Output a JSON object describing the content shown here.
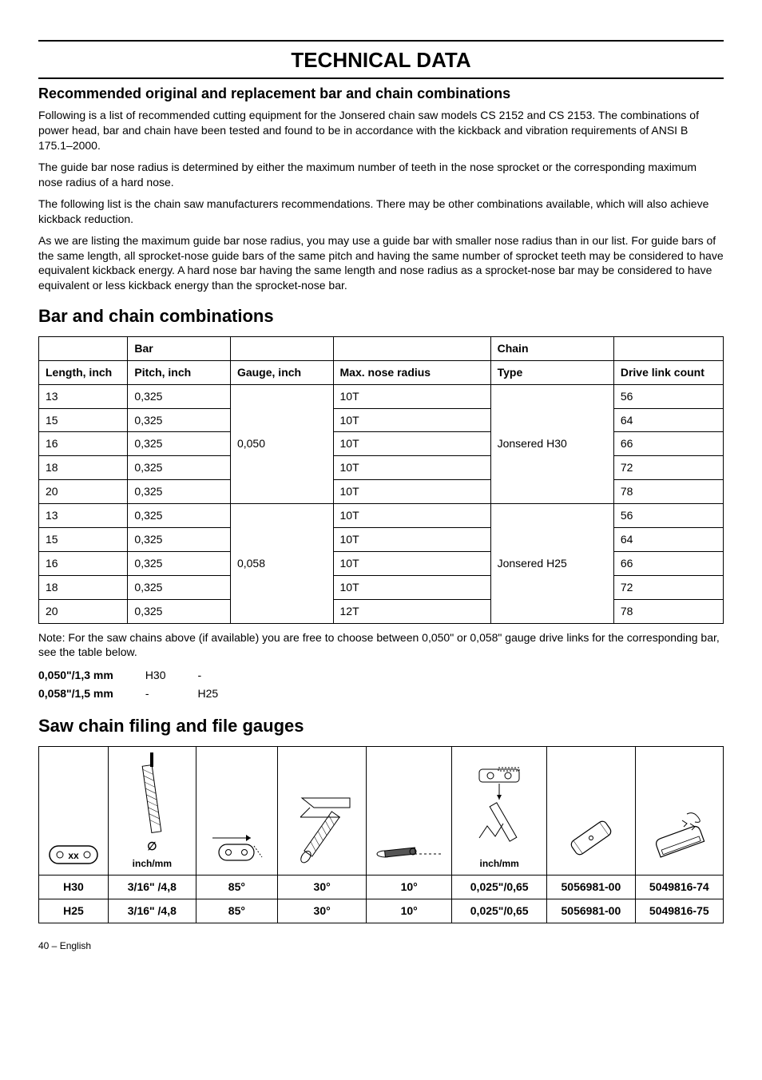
{
  "page_title": "TECHNICAL DATA",
  "subheading": "Recommended original and replacement bar and chain combinations",
  "paragraphs": [
    "Following is a list of recommended cutting equipment for the Jonsered chain saw models CS 2152 and CS 2153. The combinations of power head, bar and chain have been tested and found to be in accordance with the kickback and vibration requirements of ANSI B 175.1–2000.",
    "The guide bar nose radius is determined by either the maximum number of teeth in the nose sprocket or the corresponding maximum nose radius of a hard nose.",
    "The following list is the chain saw manufacturers recommendations. There may be other combinations available, which will also achieve kickback reduction.",
    "As we are listing the maximum guide bar nose radius, you may use a guide bar with smaller nose radius than in our list. For guide bars of the same length, all sprocket-nose guide bars of the same pitch and having the same number of sprocket teeth may be considered to have equivalent kickback energy. A hard nose bar having the same length and nose radius as a sprocket-nose bar may be considered to have equivalent or less kickback energy than the sprocket-nose bar."
  ],
  "bar_chain_heading": "Bar and chain combinations",
  "combo_table": {
    "header_groups": {
      "bar": "Bar",
      "chain": "Chain"
    },
    "headers": {
      "length": "Length, inch",
      "pitch": "Pitch, inch",
      "gauge": "Gauge, inch",
      "nose": "Max. nose radius",
      "type": "Type",
      "drive": "Drive link count"
    },
    "groups": [
      {
        "gauge": "0,050",
        "type": "Jonsered H30",
        "rows": [
          {
            "length": "13",
            "pitch": "0,325",
            "nose": "10T",
            "drive": "56"
          },
          {
            "length": "15",
            "pitch": "0,325",
            "nose": "10T",
            "drive": "64"
          },
          {
            "length": "16",
            "pitch": "0,325",
            "nose": "10T",
            "drive": "66"
          },
          {
            "length": "18",
            "pitch": "0,325",
            "nose": "10T",
            "drive": "72"
          },
          {
            "length": "20",
            "pitch": "0,325",
            "nose": "10T",
            "drive": "78"
          }
        ]
      },
      {
        "gauge": "0,058",
        "type": "Jonsered H25",
        "rows": [
          {
            "length": "13",
            "pitch": "0,325",
            "nose": "10T",
            "drive": "56"
          },
          {
            "length": "15",
            "pitch": "0,325",
            "nose": "10T",
            "drive": "64"
          },
          {
            "length": "16",
            "pitch": "0,325",
            "nose": "10T",
            "drive": "66"
          },
          {
            "length": "18",
            "pitch": "0,325",
            "nose": "10T",
            "drive": "72"
          },
          {
            "length": "20",
            "pitch": "0,325",
            "nose": "12T",
            "drive": "78"
          }
        ]
      }
    ]
  },
  "note": "Note: For the saw chains above (if available) you are free to choose between 0,050\" or 0,058\" gauge drive links for the corresponding bar, see the table below.",
  "gauge_rows": [
    {
      "label": "0,050\"/1,3 mm",
      "c1": "H30",
      "c2": "-"
    },
    {
      "label": "0,058\"/1,5 mm",
      "c1": "-",
      "c2": "H25"
    }
  ],
  "filing_heading": "Saw chain filing and file gauges",
  "filing_labels": {
    "inchmm1": "inch/mm",
    "inchmm2": "inch/mm",
    "file_dia_sym": "∅"
  },
  "filing_rows": [
    {
      "name": "H30",
      "dia": "3/16\" /4,8",
      "a1": "85°",
      "a2": "30°",
      "a3": "10°",
      "depth": "0,025\"/0,65",
      "p1": "5056981-00",
      "p2": "5049816-74"
    },
    {
      "name": "H25",
      "dia": "3/16\" /4,8",
      "a1": "85°",
      "a2": "30°",
      "a3": "10°",
      "depth": "0,025\"/0,65",
      "p1": "5056981-00",
      "p2": "5049816-75"
    }
  ],
  "footer": "40 – English",
  "colors": {
    "text": "#000000",
    "bg": "#ffffff",
    "rule": "#000000"
  },
  "col_widths": {
    "combo": [
      "13%",
      "15%",
      "15%",
      "23%",
      "18%",
      "16%"
    ],
    "filing": [
      "10%",
      "13%",
      "12%",
      "13%",
      "12%",
      "14%",
      "13%",
      "13%"
    ]
  }
}
